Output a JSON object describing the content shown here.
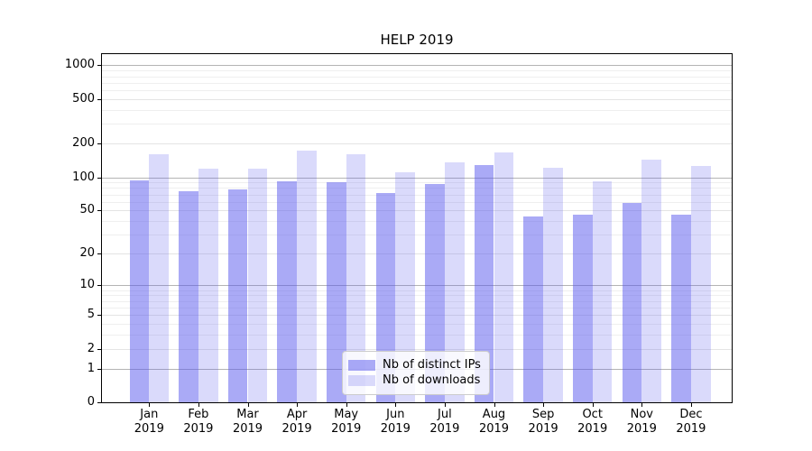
{
  "title": "HELP 2019",
  "chart_data": {
    "type": "bar",
    "title": "HELP 2019",
    "scale": "log1p",
    "grid": true,
    "xlabel": "",
    "ylabel": "",
    "categories": [
      "Jan",
      "Feb",
      "Mar",
      "Apr",
      "May",
      "Jun",
      "Jul",
      "Aug",
      "Sep",
      "Oct",
      "Nov",
      "Dec"
    ],
    "category_sublabel": "2019",
    "series": [
      {
        "name": "Nb of distinct IPs",
        "color": "rgba(85,85,238,0.5)",
        "values": [
          94,
          75,
          77,
          92,
          90,
          72,
          87,
          128,
          44,
          46,
          59,
          46
        ]
      },
      {
        "name": "Nb of downloads",
        "color": "rgba(85,85,238,0.22)",
        "values": [
          162,
          119,
          120,
          172,
          160,
          111,
          135,
          167,
          122,
          92,
          144,
          126
        ]
      }
    ],
    "y_ticks": [
      0,
      1,
      2,
      5,
      10,
      20,
      50,
      100,
      200,
      500,
      1000
    ],
    "ylim": [
      0,
      1260
    ],
    "legend_position": "lower center",
    "colors": {
      "major_grid": "#b4b4b4",
      "mid_grid": "#e4e4e4",
      "minor_grid": "#efefef",
      "spine": "#000000",
      "legend_border": "#cccccc",
      "legend_background": "rgba(255,255,255,0.8)"
    }
  }
}
